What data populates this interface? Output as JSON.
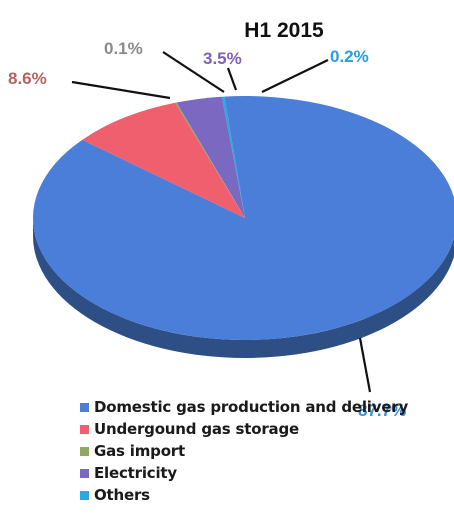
{
  "chart_data": {
    "type": "pie",
    "title": "H1 2015",
    "categories": [
      "Domestic gas production and delivery",
      "Undergound gas storage",
      "Gas import",
      "Electricity",
      "Others"
    ],
    "values": [
      87.7,
      8.6,
      0.1,
      3.5,
      0.2
    ],
    "data_labels": [
      "87.7%",
      "8.6%",
      "0.1%",
      "3.5%",
      "0.2%"
    ],
    "colors": [
      "#4a7ed8",
      "#ef5f6e",
      "#8fa862",
      "#7b68c1",
      "#2aa8e0"
    ],
    "label_colors": [
      "#3a8fd6",
      "#b4645f",
      "#8a8a8a",
      "#7e61b7",
      "#2aa0df"
    ],
    "legend_position": "bottom",
    "style": "3d"
  }
}
